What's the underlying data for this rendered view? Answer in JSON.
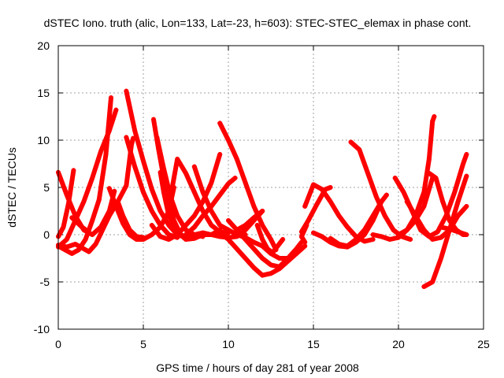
{
  "chart_data": {
    "type": "scatter",
    "title": "dSTEC Iono. truth (alic, Lon=133, Lat=-23, h=603): STEC-STEC_elemax in phase cont.",
    "xlabel": "GPS time / hours of day 281 of year 2008",
    "ylabel": "dSTEC  / TECUs",
    "xlim": [
      0,
      25
    ],
    "ylim": [
      -10,
      20
    ],
    "xticks": [
      0,
      5,
      10,
      15,
      20,
      25
    ],
    "yticks": [
      -10,
      -5,
      0,
      5,
      10,
      15,
      20
    ],
    "grid": true,
    "marker": "plus",
    "color": "#ff0000",
    "series": [
      {
        "points": [
          [
            0.0,
            6.6
          ],
          [
            0.5,
            4.2
          ],
          [
            1.0,
            2.0
          ],
          [
            1.5,
            0.5
          ],
          [
            2.0,
            0.0
          ],
          [
            2.5,
            0.8
          ],
          [
            3.0,
            2.5
          ],
          [
            3.3,
            4.6
          ]
        ]
      },
      {
        "points": [
          [
            0.0,
            -0.2
          ],
          [
            0.3,
            0.8
          ],
          [
            0.6,
            3.3
          ],
          [
            0.9,
            6.8
          ]
        ]
      },
      {
        "points": [
          [
            0.0,
            -1.2
          ],
          [
            0.4,
            -1.6
          ],
          [
            0.8,
            -2.0
          ],
          [
            1.2,
            -1.6
          ],
          [
            1.6,
            -0.5
          ],
          [
            2.0,
            1.5
          ],
          [
            2.4,
            3.7
          ],
          [
            2.8,
            8.5
          ],
          [
            3.1,
            14.5
          ]
        ]
      },
      {
        "points": [
          [
            0.0,
            -1.3
          ],
          [
            0.5,
            -0.5
          ],
          [
            1.0,
            1.5
          ],
          [
            1.5,
            3.5
          ],
          [
            2.0,
            6.0
          ],
          [
            2.5,
            8.8
          ],
          [
            3.0,
            11.0
          ],
          [
            3.4,
            13.2
          ]
        ]
      },
      {
        "points": [
          [
            0.0,
            -1.1
          ],
          [
            0.5,
            -1.3
          ],
          [
            1.0,
            -1.0
          ],
          [
            1.5,
            -1.5
          ],
          [
            1.8,
            -1.8
          ],
          [
            2.2,
            -1.0
          ],
          [
            2.6,
            0.5
          ],
          [
            3.0,
            2.0
          ],
          [
            3.5,
            3.5
          ],
          [
            4.0,
            5.2
          ],
          [
            4.3,
            9.5
          ],
          [
            4.4,
            10.2
          ]
        ]
      },
      {
        "points": [
          [
            0.8,
            1.8
          ],
          [
            1.1,
            1.3
          ],
          [
            1.4,
            0.8
          ],
          [
            1.7,
            0.4
          ]
        ]
      },
      {
        "points": [
          [
            4.0,
            15.2
          ],
          [
            4.5,
            11.0
          ],
          [
            5.0,
            7.8
          ],
          [
            5.5,
            4.8
          ],
          [
            6.0,
            2.5
          ],
          [
            6.5,
            1.0
          ],
          [
            7.0,
            0.0
          ],
          [
            7.5,
            -0.3
          ]
        ]
      },
      {
        "points": [
          [
            4.0,
            10.3
          ],
          [
            4.5,
            7.2
          ],
          [
            5.0,
            4.5
          ],
          [
            5.5,
            2.5
          ],
          [
            6.0,
            1.0
          ],
          [
            6.5,
            0.0
          ],
          [
            7.0,
            -0.3
          ]
        ]
      },
      {
        "points": [
          [
            3.0,
            4.9
          ],
          [
            3.4,
            3.0
          ],
          [
            3.8,
            1.2
          ],
          [
            4.2,
            0.0
          ],
          [
            4.6,
            -0.5
          ],
          [
            5.0,
            -0.5
          ],
          [
            5.5,
            0.0
          ],
          [
            6.0,
            0.8
          ],
          [
            6.5,
            2.5
          ],
          [
            6.8,
            5.0
          ]
        ]
      },
      {
        "points": [
          [
            3.5,
            3.5
          ],
          [
            3.8,
            2.0
          ],
          [
            4.2,
            0.5
          ],
          [
            4.6,
            -0.2
          ],
          [
            5.0,
            -0.3
          ]
        ]
      },
      {
        "points": [
          [
            5.6,
            12.2
          ],
          [
            5.9,
            9.0
          ],
          [
            6.2,
            6.0
          ],
          [
            6.5,
            3.5
          ],
          [
            6.8,
            1.5
          ],
          [
            7.2,
            0.0
          ],
          [
            7.6,
            -0.3
          ],
          [
            8.0,
            0.0
          ]
        ]
      },
      {
        "points": [
          [
            5.8,
            10.3
          ],
          [
            6.2,
            7.0
          ],
          [
            6.6,
            4.0
          ],
          [
            7.0,
            2.0
          ],
          [
            7.5,
            0.5
          ],
          [
            8.0,
            0.0
          ],
          [
            8.5,
            -0.2
          ]
        ]
      },
      {
        "points": [
          [
            6.0,
            6.6
          ],
          [
            6.2,
            4.5
          ],
          [
            6.5,
            2.0
          ],
          [
            7.0,
            0.3
          ],
          [
            7.5,
            -0.5
          ],
          [
            8.0,
            -0.4
          ],
          [
            8.5,
            0.0
          ],
          [
            9.0,
            0.0
          ],
          [
            9.5,
            0.5
          ]
        ]
      },
      {
        "points": [
          [
            5.5,
            1.0
          ],
          [
            6.0,
            -0.2
          ],
          [
            6.5,
            -0.5
          ],
          [
            7.0,
            0.0
          ],
          [
            7.5,
            1.0
          ],
          [
            8.0,
            2.0
          ],
          [
            8.5,
            3.5
          ],
          [
            9.0,
            5.5
          ],
          [
            9.5,
            8.5
          ]
        ]
      },
      {
        "points": [
          [
            6.5,
            3.0
          ],
          [
            6.8,
            6.0
          ],
          [
            7.0,
            8.0
          ],
          [
            7.5,
            6.5
          ],
          [
            8.0,
            4.5
          ],
          [
            8.5,
            2.5
          ],
          [
            9.0,
            1.0
          ],
          [
            9.5,
            0.3
          ],
          [
            10.0,
            0.2
          ]
        ]
      },
      {
        "points": [
          [
            8.0,
            7.2
          ],
          [
            8.5,
            4.5
          ],
          [
            9.0,
            2.5
          ],
          [
            9.5,
            1.0
          ],
          [
            10.0,
            0.5
          ],
          [
            10.5,
            0.0
          ],
          [
            11.0,
            0.0
          ]
        ]
      },
      {
        "points": [
          [
            8.0,
            0.0
          ],
          [
            8.5,
            0.2
          ],
          [
            9.0,
            0.0
          ],
          [
            9.5,
            -0.2
          ],
          [
            10.0,
            -0.3
          ],
          [
            10.5,
            -0.2
          ],
          [
            11.0,
            0.5
          ],
          [
            11.5,
            1.5
          ],
          [
            12.0,
            2.5
          ]
        ]
      },
      {
        "points": [
          [
            7.5,
            0.0
          ],
          [
            8.0,
            0.8
          ],
          [
            8.5,
            2.0
          ],
          [
            9.0,
            3.0
          ],
          [
            9.5,
            4.2
          ],
          [
            10.0,
            5.4
          ],
          [
            10.4,
            6.0
          ]
        ]
      },
      {
        "points": [
          [
            9.5,
            11.8
          ],
          [
            10.0,
            10.0
          ],
          [
            10.5,
            8.0
          ],
          [
            11.0,
            5.5
          ],
          [
            11.5,
            3.0
          ],
          [
            12.0,
            1.0
          ],
          [
            12.5,
            -0.5
          ],
          [
            12.8,
            -1.6
          ]
        ]
      },
      {
        "points": [
          [
            9.5,
            0.2
          ],
          [
            10.0,
            -0.5
          ],
          [
            10.5,
            -1.5
          ],
          [
            11.0,
            -2.5
          ],
          [
            11.5,
            -3.5
          ],
          [
            12.0,
            -4.3
          ],
          [
            12.5,
            -4.1
          ],
          [
            13.0,
            -3.6
          ],
          [
            13.5,
            -2.8
          ],
          [
            14.0,
            -2.0
          ]
        ]
      },
      {
        "points": [
          [
            10.0,
            1.5
          ],
          [
            10.5,
            0.5
          ],
          [
            11.0,
            -0.5
          ],
          [
            11.5,
            -1.5
          ],
          [
            12.0,
            -2.5
          ],
          [
            12.5,
            -3.2
          ],
          [
            13.0,
            -3.4
          ],
          [
            13.5,
            -2.5
          ],
          [
            14.0,
            -1.5
          ],
          [
            14.3,
            -0.8
          ]
        ]
      },
      {
        "points": [
          [
            10.5,
            0.0
          ],
          [
            11.0,
            -0.3
          ],
          [
            11.5,
            -0.8
          ],
          [
            12.0,
            -1.2
          ],
          [
            12.5,
            -2.0
          ],
          [
            13.0,
            -2.5
          ],
          [
            13.5,
            -2.5
          ],
          [
            14.0,
            -2.0
          ],
          [
            14.5,
            -1.2
          ]
        ]
      },
      {
        "points": [
          [
            10.5,
            0.5
          ],
          [
            11.0,
            1.0
          ],
          [
            11.5,
            1.8
          ],
          [
            12.0,
            2.5
          ]
        ]
      },
      {
        "points": [
          [
            11.7,
            1.0
          ],
          [
            12.0,
            -0.5
          ],
          [
            12.3,
            -1.5
          ],
          [
            12.6,
            -1.9
          ],
          [
            12.9,
            -1.2
          ],
          [
            13.2,
            -0.5
          ]
        ]
      },
      {
        "points": [
          [
            14.5,
            -0.8
          ],
          [
            14.3,
            -0.2
          ],
          [
            14.6,
            1.0
          ]
        ]
      },
      {
        "points": [
          [
            14.5,
            3.0
          ],
          [
            15.0,
            5.3
          ],
          [
            15.5,
            4.8
          ],
          [
            16.0,
            3.5
          ],
          [
            16.5,
            2.0
          ],
          [
            17.0,
            0.8
          ],
          [
            17.5,
            -0.2
          ],
          [
            18.0,
            -0.7
          ],
          [
            18.5,
            -0.5
          ]
        ]
      },
      {
        "points": [
          [
            14.3,
            0.3
          ],
          [
            14.7,
            1.5
          ],
          [
            15.2,
            3.2
          ],
          [
            15.7,
            4.8
          ],
          [
            16.0,
            5.0
          ]
        ]
      },
      {
        "points": [
          [
            15.0,
            0.2
          ],
          [
            15.5,
            -0.2
          ],
          [
            16.0,
            -0.8
          ],
          [
            16.5,
            -1.2
          ],
          [
            17.0,
            -1.3
          ],
          [
            17.5,
            -0.8
          ],
          [
            18.0,
            0.0
          ],
          [
            18.5,
            1.5
          ],
          [
            19.0,
            3.5
          ],
          [
            19.3,
            4.2
          ]
        ]
      },
      {
        "points": [
          [
            16.0,
            -0.4
          ],
          [
            16.5,
            -1.0
          ],
          [
            17.0,
            -1.2
          ],
          [
            17.5,
            -0.5
          ],
          [
            18.0,
            0.5
          ],
          [
            18.5,
            2.0
          ],
          [
            19.0,
            3.5
          ]
        ]
      },
      {
        "points": [
          [
            17.2,
            9.8
          ],
          [
            17.7,
            9.0
          ],
          [
            18.2,
            6.5
          ],
          [
            18.7,
            4.0
          ],
          [
            19.2,
            2.0
          ],
          [
            19.7,
            0.5
          ],
          [
            20.2,
            -0.2
          ],
          [
            20.7,
            -0.5
          ]
        ]
      },
      {
        "points": [
          [
            18.5,
            0.0
          ],
          [
            19.0,
            -0.2
          ],
          [
            19.5,
            -0.5
          ],
          [
            20.0,
            -0.3
          ],
          [
            20.5,
            0.5
          ],
          [
            21.0,
            2.0
          ],
          [
            21.5,
            4.5
          ],
          [
            21.8,
            8.0
          ],
          [
            22.0,
            12.0
          ],
          [
            22.1,
            12.5
          ]
        ]
      },
      {
        "points": [
          [
            19.8,
            6.0
          ],
          [
            20.3,
            4.5
          ],
          [
            20.8,
            2.5
          ],
          [
            21.3,
            0.5
          ],
          [
            21.8,
            -0.2
          ],
          [
            22.3,
            0.3
          ],
          [
            22.8,
            2.0
          ],
          [
            23.3,
            4.5
          ],
          [
            23.8,
            7.5
          ],
          [
            24.0,
            8.5
          ]
        ]
      },
      {
        "points": [
          [
            20.5,
            3.5
          ],
          [
            21.0,
            2.0
          ],
          [
            21.5,
            0.5
          ],
          [
            22.0,
            -0.5
          ],
          [
            22.5,
            -0.3
          ],
          [
            23.0,
            0.5
          ],
          [
            23.5,
            2.0
          ],
          [
            24.0,
            3.0
          ]
        ]
      },
      {
        "points": [
          [
            21.5,
            -5.5
          ],
          [
            22.0,
            -5.0
          ],
          [
            22.5,
            -2.5
          ],
          [
            23.0,
            0.5
          ],
          [
            23.5,
            3.5
          ],
          [
            24.0,
            6.2
          ]
        ]
      },
      {
        "points": [
          [
            21.8,
            6.5
          ],
          [
            22.2,
            6.0
          ],
          [
            22.6,
            3.5
          ],
          [
            23.0,
            1.5
          ],
          [
            23.4,
            0.5
          ],
          [
            23.8,
            0.0
          ],
          [
            24.0,
            0.0
          ]
        ]
      },
      {
        "points": [
          [
            20.0,
            0.0
          ],
          [
            20.5,
            0.5
          ],
          [
            21.0,
            1.5
          ],
          [
            21.5,
            3.0
          ],
          [
            22.0,
            6.0
          ]
        ]
      },
      {
        "points": [
          [
            22.5,
            0.8
          ],
          [
            23.0,
            0.6
          ],
          [
            23.5,
            0.3
          ],
          [
            24.0,
            0.0
          ]
        ]
      }
    ]
  }
}
